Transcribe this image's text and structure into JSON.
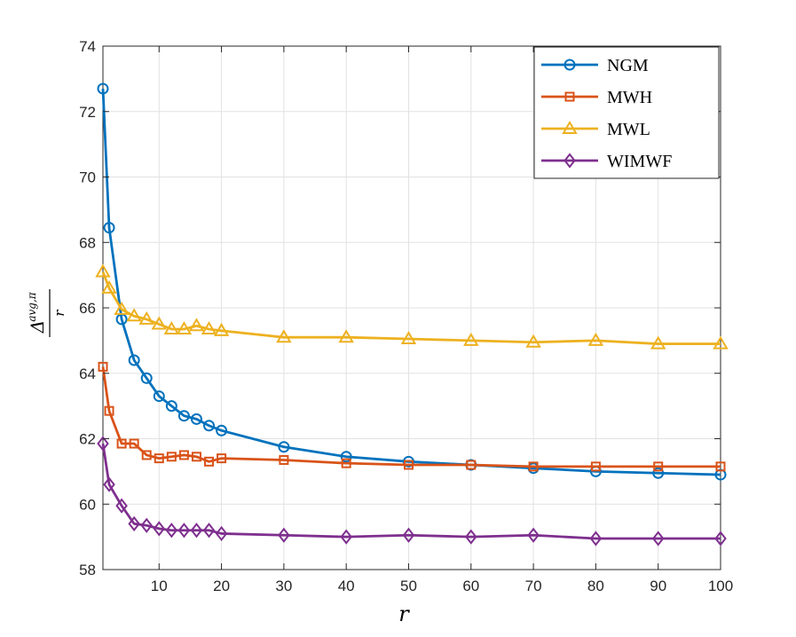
{
  "chart_data": {
    "type": "line",
    "title": "",
    "xlabel": "r",
    "ylabel": {
      "delta": "Δ",
      "superscript": "avg,π",
      "denominator": "r"
    },
    "xlim": [
      1,
      100
    ],
    "ylim": [
      58,
      74
    ],
    "xticks": [
      10,
      20,
      30,
      40,
      50,
      60,
      70,
      80,
      90,
      100
    ],
    "yticks": [
      58,
      60,
      62,
      64,
      66,
      68,
      70,
      72,
      74
    ],
    "grid": true,
    "legend_position": "top-right",
    "x": [
      1,
      2,
      4,
      6,
      8,
      10,
      12,
      14,
      16,
      18,
      20,
      30,
      40,
      50,
      60,
      70,
      80,
      90,
      100
    ],
    "series": [
      {
        "name": "NGM",
        "color": "#0072BD",
        "marker": "circle",
        "values": [
          72.7,
          68.45,
          65.65,
          64.4,
          63.85,
          63.3,
          63.0,
          62.7,
          62.6,
          62.4,
          62.25,
          61.75,
          61.45,
          61.3,
          61.2,
          61.1,
          61.0,
          60.95,
          60.9
        ]
      },
      {
        "name": "MWH",
        "color": "#D95319",
        "marker": "square",
        "values": [
          64.2,
          62.85,
          61.85,
          61.85,
          61.5,
          61.4,
          61.45,
          61.5,
          61.45,
          61.3,
          61.4,
          61.35,
          61.25,
          61.2,
          61.2,
          61.15,
          61.15,
          61.15,
          61.15
        ]
      },
      {
        "name": "MWL",
        "color": "#EDB120",
        "marker": "triangle",
        "values": [
          67.1,
          66.6,
          65.95,
          65.75,
          65.65,
          65.5,
          65.35,
          65.35,
          65.45,
          65.35,
          65.3,
          65.1,
          65.1,
          65.05,
          65.0,
          64.95,
          65.0,
          64.9,
          64.9
        ]
      },
      {
        "name": "WIMWF",
        "color": "#7E2F8E",
        "marker": "diamond",
        "values": [
          61.85,
          60.6,
          59.95,
          59.4,
          59.35,
          59.25,
          59.2,
          59.2,
          59.2,
          59.2,
          59.1,
          59.05,
          59.0,
          59.05,
          59.0,
          59.05,
          58.95,
          58.95,
          58.95
        ]
      }
    ]
  }
}
